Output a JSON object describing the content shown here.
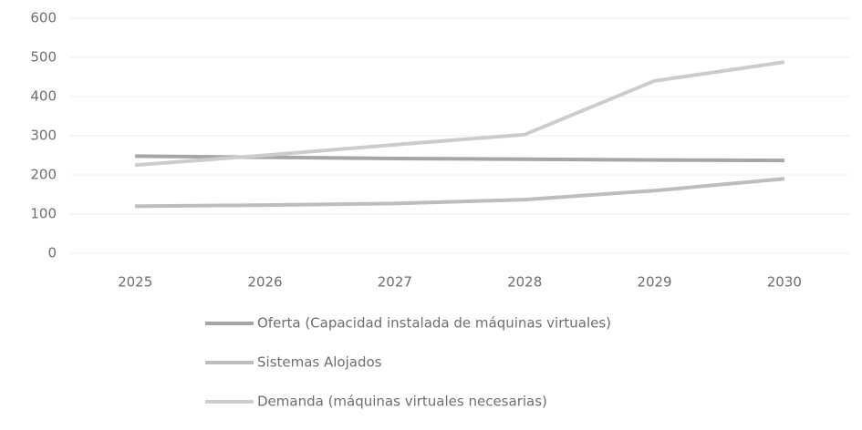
{
  "chart_data": {
    "type": "line",
    "categories": [
      "2025",
      "2026",
      "2027",
      "2028",
      "2029",
      "2030"
    ],
    "series": [
      {
        "name": "Oferta (Capacidad instalada de máquinas virtuales)",
        "color": "#a6a6a6",
        "values": [
          248,
          245,
          242,
          240,
          238,
          237
        ]
      },
      {
        "name": "Sistemas Alojados",
        "color": "#bdbdbd",
        "values": [
          120,
          123,
          127,
          137,
          160,
          190
        ]
      },
      {
        "name": "Demanda (máquinas virtuales necesarias)",
        "color": "#cccccc",
        "values": [
          225,
          250,
          277,
          303,
          440,
          488
        ]
      }
    ],
    "ylim": [
      0,
      600
    ],
    "yticks": [
      0,
      100,
      200,
      300,
      400,
      500,
      600
    ],
    "grid": true,
    "legend": "bottom"
  }
}
